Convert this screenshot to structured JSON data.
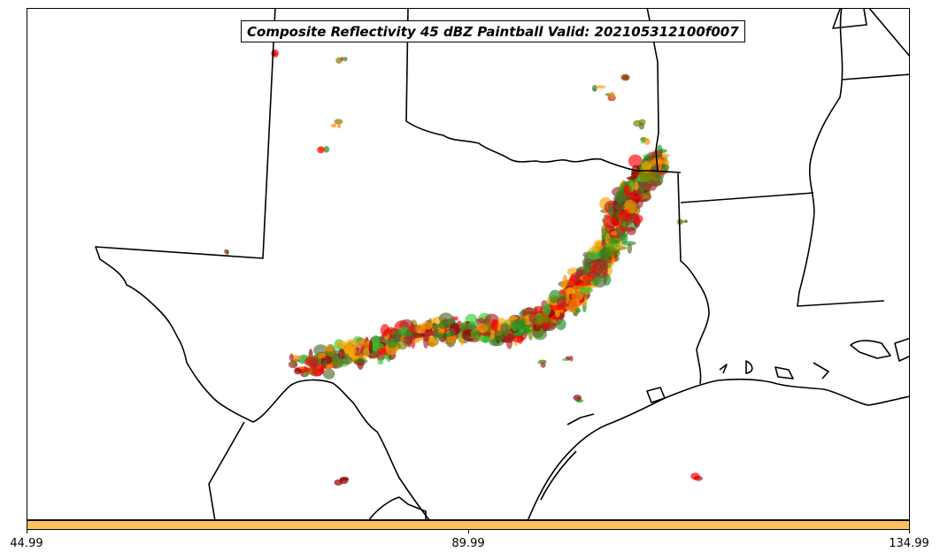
{
  "map": {
    "title": "Composite Reflectivity 45 dBZ Paintball Valid: 202105312100f007",
    "member_colors": [
      "#ff0000",
      "#ff8c00",
      "#8b0000",
      "#228b22",
      "#32cd32",
      "#808000",
      "#ffa500",
      "#a52a2a",
      "#556b2f",
      "#b22222"
    ],
    "boundary_color": "#000000"
  },
  "colorbar": {
    "color": "#ffbf60",
    "ticks": [
      "44.99",
      "89.99",
      "134.99"
    ]
  }
}
